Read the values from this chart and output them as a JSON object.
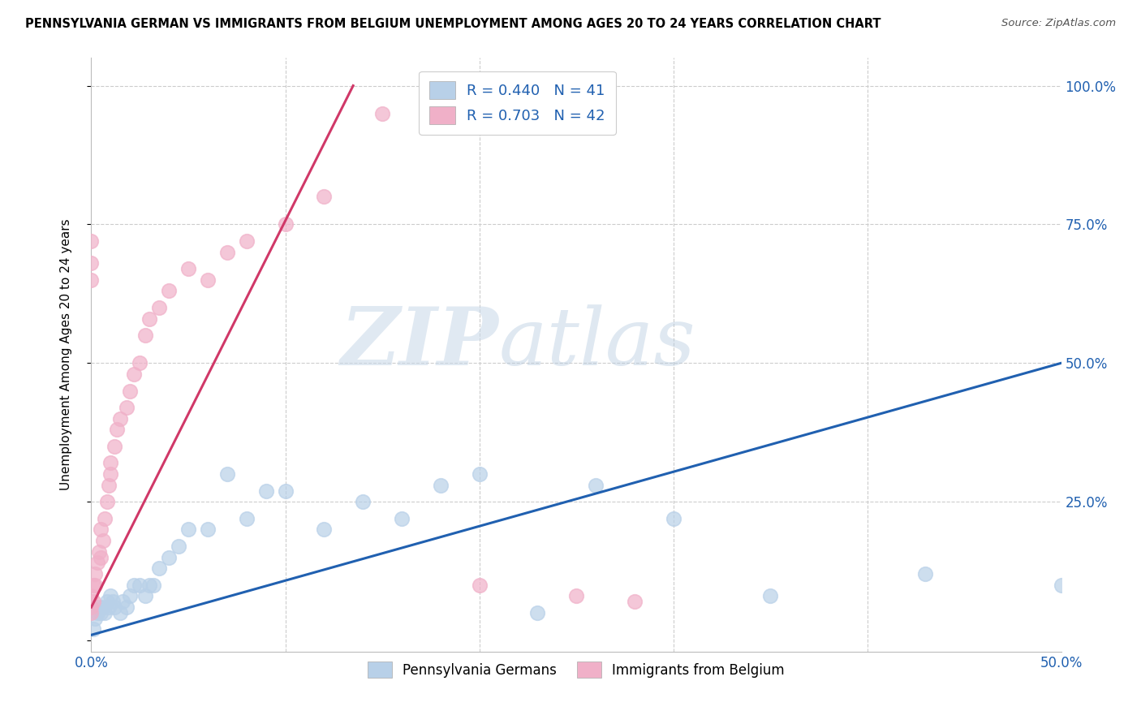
{
  "title": "PENNSYLVANIA GERMAN VS IMMIGRANTS FROM BELGIUM UNEMPLOYMENT AMONG AGES 20 TO 24 YEARS CORRELATION CHART",
  "source": "Source: ZipAtlas.com",
  "ylabel": "Unemployment Among Ages 20 to 24 years",
  "xlim": [
    0.0,
    0.5
  ],
  "ylim": [
    -0.02,
    1.05
  ],
  "yticks": [
    0.0,
    0.25,
    0.5,
    0.75,
    1.0
  ],
  "yticklabels_right": [
    "",
    "25.0%",
    "50.0%",
    "75.0%",
    "100.0%"
  ],
  "blue_R": 0.44,
  "blue_N": 41,
  "pink_R": 0.703,
  "pink_N": 42,
  "blue_color": "#b8d0e8",
  "pink_color": "#f0b0c8",
  "blue_line_color": "#2060b0",
  "pink_line_color": "#d03868",
  "watermark_zip": "ZIP",
  "watermark_atlas": "atlas",
  "blue_scatter_x": [
    0.001,
    0.002,
    0.003,
    0.004,
    0.005,
    0.006,
    0.007,
    0.008,
    0.009,
    0.01,
    0.011,
    0.012,
    0.015,
    0.016,
    0.018,
    0.02,
    0.022,
    0.025,
    0.028,
    0.03,
    0.032,
    0.035,
    0.04,
    0.045,
    0.05,
    0.06,
    0.07,
    0.08,
    0.09,
    0.1,
    0.12,
    0.14,
    0.16,
    0.18,
    0.2,
    0.23,
    0.26,
    0.3,
    0.35,
    0.43,
    0.5
  ],
  "blue_scatter_y": [
    0.02,
    0.04,
    0.05,
    0.06,
    0.05,
    0.06,
    0.05,
    0.07,
    0.06,
    0.08,
    0.07,
    0.06,
    0.05,
    0.07,
    0.06,
    0.08,
    0.1,
    0.1,
    0.08,
    0.1,
    0.1,
    0.13,
    0.15,
    0.17,
    0.2,
    0.2,
    0.3,
    0.22,
    0.27,
    0.27,
    0.2,
    0.25,
    0.22,
    0.28,
    0.3,
    0.05,
    0.28,
    0.22,
    0.08,
    0.12,
    0.1
  ],
  "pink_scatter_x": [
    0.0,
    0.0,
    0.0,
    0.001,
    0.001,
    0.002,
    0.002,
    0.003,
    0.004,
    0.005,
    0.005,
    0.006,
    0.007,
    0.008,
    0.009,
    0.01,
    0.01,
    0.012,
    0.013,
    0.015,
    0.018,
    0.02,
    0.022,
    0.025,
    0.028,
    0.03,
    0.035,
    0.04,
    0.05,
    0.06,
    0.07,
    0.08,
    0.1,
    0.12,
    0.15,
    0.18,
    0.2,
    0.25,
    0.28,
    0.0,
    0.0,
    0.0
  ],
  "pink_scatter_y": [
    0.05,
    0.06,
    0.08,
    0.07,
    0.1,
    0.1,
    0.12,
    0.14,
    0.16,
    0.15,
    0.2,
    0.18,
    0.22,
    0.25,
    0.28,
    0.3,
    0.32,
    0.35,
    0.38,
    0.4,
    0.42,
    0.45,
    0.48,
    0.5,
    0.55,
    0.58,
    0.6,
    0.63,
    0.67,
    0.65,
    0.7,
    0.72,
    0.75,
    0.8,
    0.95,
    0.95,
    0.1,
    0.08,
    0.07,
    0.68,
    0.72,
    0.65
  ],
  "blue_line_x": [
    0.0,
    0.5
  ],
  "blue_line_y": [
    0.01,
    0.5
  ],
  "pink_line_x": [
    0.0,
    0.135
  ],
  "pink_line_y": [
    0.06,
    1.0
  ]
}
